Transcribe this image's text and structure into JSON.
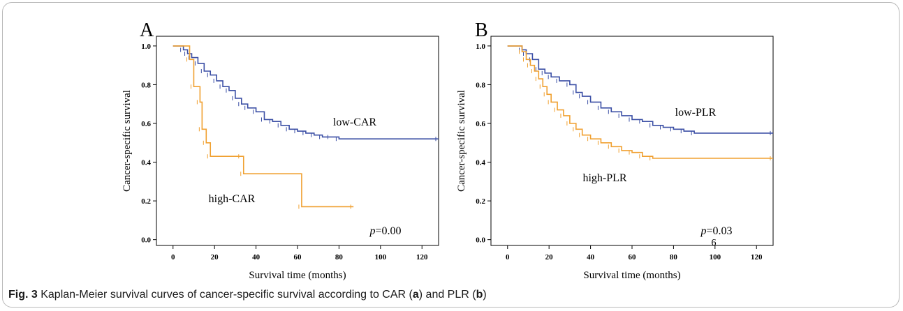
{
  "panels": {
    "a": "A",
    "b": "B"
  },
  "caption": {
    "fig": "Fig. 3",
    "text_1": " Kaplan-Meier survival curves of cancer-specific survival according to CAR (",
    "label_a": "a",
    "text_2": ") and PLR (",
    "label_b": "b",
    "text_3": ")"
  },
  "colors": {
    "low": "#3b4fa5",
    "high": "#f0a030"
  },
  "chart_data": [
    {
      "type": "line",
      "panel": "A",
      "title": "",
      "xlabel": "Survival time (months)",
      "ylabel": "Cancer-specific survival",
      "xlim": [
        -8,
        128
      ],
      "ylim": [
        -0.03,
        1.05
      ],
      "xticks": [
        0,
        20,
        40,
        60,
        80,
        100,
        120
      ],
      "yticks": [
        "0.0",
        "0.2",
        "0.4",
        "0.6",
        "0.8",
        "1.0"
      ],
      "pvalue_italic": "p",
      "pvalue_text": "=0.00",
      "series": [
        {
          "name": "low-CAR",
          "color_key": "low",
          "x": [
            0,
            4,
            5,
            7,
            9,
            12,
            15,
            18,
            21,
            24,
            27,
            30,
            33,
            36,
            40,
            44,
            48,
            52,
            56,
            60,
            64,
            68,
            72,
            76,
            80,
            128
          ],
          "y": [
            1.0,
            1.0,
            0.98,
            0.96,
            0.94,
            0.91,
            0.87,
            0.85,
            0.82,
            0.79,
            0.77,
            0.73,
            0.7,
            0.68,
            0.66,
            0.62,
            0.61,
            0.59,
            0.57,
            0.56,
            0.55,
            0.54,
            0.53,
            0.53,
            0.52,
            0.52
          ]
        },
        {
          "name": "high-CAR",
          "color_key": "high",
          "x": [
            0,
            6,
            8,
            10,
            13,
            14,
            16,
            18,
            33,
            34,
            62,
            87
          ],
          "y": [
            1.0,
            1.0,
            0.93,
            0.79,
            0.71,
            0.57,
            0.5,
            0.43,
            0.43,
            0.34,
            0.17,
            0.17
          ]
        }
      ]
    },
    {
      "type": "line",
      "panel": "B",
      "title": "",
      "xlabel": "Survival time (months)",
      "ylabel": "Cancer-specific survival",
      "xlim": [
        -8,
        128
      ],
      "ylim": [
        -0.03,
        1.05
      ],
      "xticks": [
        0,
        20,
        40,
        60,
        80,
        100,
        120
      ],
      "yticks": [
        "0.0",
        "0.2",
        "0.4",
        "0.6",
        "0.8",
        "1.0"
      ],
      "pvalue_italic": "p",
      "pvalue_text": "=0.03",
      "pvalue_text_2": "6",
      "series": [
        {
          "name": "low-PLR",
          "color_key": "low",
          "x": [
            0,
            5,
            7,
            9,
            12,
            15,
            18,
            21,
            25,
            30,
            33,
            36,
            40,
            45,
            50,
            55,
            60,
            65,
            70,
            75,
            80,
            85,
            90,
            128
          ],
          "y": [
            1.0,
            1.0,
            0.98,
            0.96,
            0.93,
            0.88,
            0.86,
            0.84,
            0.82,
            0.8,
            0.76,
            0.74,
            0.71,
            0.68,
            0.66,
            0.64,
            0.62,
            0.61,
            0.59,
            0.58,
            0.57,
            0.56,
            0.55,
            0.55
          ]
        },
        {
          "name": "high-PLR",
          "color_key": "high",
          "x": [
            0,
            5,
            7,
            9,
            11,
            13,
            15,
            17,
            19,
            21,
            24,
            27,
            30,
            33,
            36,
            40,
            45,
            50,
            55,
            60,
            65,
            70,
            128
          ],
          "y": [
            1.0,
            1.0,
            0.97,
            0.93,
            0.9,
            0.87,
            0.83,
            0.79,
            0.75,
            0.71,
            0.67,
            0.64,
            0.6,
            0.57,
            0.54,
            0.52,
            0.5,
            0.48,
            0.46,
            0.45,
            0.43,
            0.42,
            0.42
          ]
        }
      ]
    }
  ]
}
